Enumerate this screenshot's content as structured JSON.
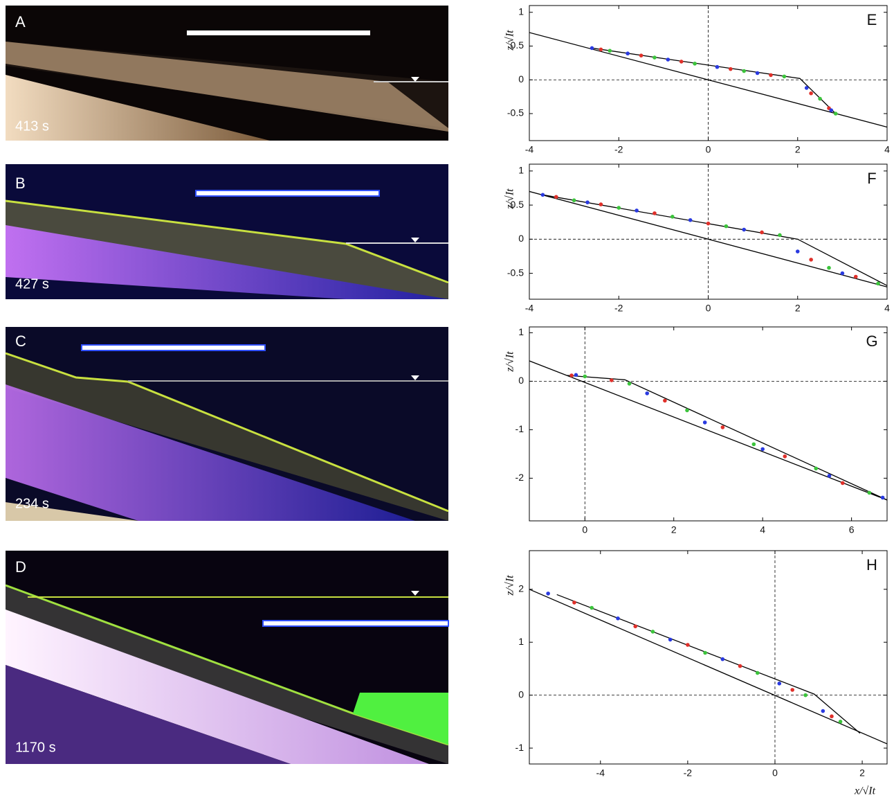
{
  "photos": [
    {
      "label": "A",
      "time": "413 s"
    },
    {
      "label": "B",
      "time": "427 s"
    },
    {
      "label": "C",
      "time": "234 s"
    },
    {
      "label": "D",
      "time": "1170 s"
    }
  ],
  "chart_data": [
    {
      "type": "scatter",
      "label": "E",
      "ylabel": "z/√It",
      "xlim": [
        -4,
        4
      ],
      "ylim": [
        -0.9,
        1.1
      ],
      "xticks": [
        -4,
        -2,
        0,
        2,
        4
      ],
      "yticks": [
        -0.5,
        0,
        0.5,
        1
      ],
      "lines": [
        {
          "color": "#000",
          "x": [
            -4,
            4
          ],
          "y": [
            0.7,
            -0.7
          ]
        },
        {
          "color": "#000",
          "x": [
            -2.6,
            2.05,
            2.85
          ],
          "y": [
            0.47,
            0.02,
            -0.5
          ]
        }
      ],
      "series": [
        {
          "color": "#e0302a",
          "x": [
            -2.4,
            -1.5,
            -0.6,
            0.5,
            1.4,
            2.3,
            2.7
          ],
          "values": [
            0.45,
            0.36,
            0.27,
            0.16,
            0.07,
            -0.2,
            -0.42
          ]
        },
        {
          "color": "#3cc43c",
          "x": [
            -2.2,
            -1.2,
            -0.3,
            0.8,
            1.7,
            2.5,
            2.85
          ],
          "values": [
            0.43,
            0.33,
            0.24,
            0.13,
            0.05,
            -0.28,
            -0.5
          ]
        },
        {
          "color": "#2a3ae0",
          "x": [
            -2.6,
            -1.8,
            -0.9,
            0.2,
            1.1,
            2.2,
            2.75
          ],
          "values": [
            0.47,
            0.39,
            0.3,
            0.19,
            0.1,
            -0.12,
            -0.45
          ]
        }
      ]
    },
    {
      "type": "scatter",
      "label": "F",
      "ylabel": "z/√It",
      "xlim": [
        -4,
        4
      ],
      "ylim": [
        -0.88,
        1.1
      ],
      "xticks": [
        -4,
        -2,
        0,
        2,
        4
      ],
      "yticks": [
        -0.5,
        0,
        0.5,
        1
      ],
      "lines": [
        {
          "color": "#000",
          "x": [
            -4,
            4
          ],
          "y": [
            0.7,
            -0.7
          ]
        },
        {
          "color": "#000",
          "x": [
            -3.7,
            2.0,
            4
          ],
          "y": [
            0.65,
            0.0,
            -0.68
          ]
        }
      ],
      "series": [
        {
          "color": "#e0302a",
          "x": [
            -3.4,
            -2.4,
            -1.2,
            0,
            1.2,
            2.3,
            3.3
          ],
          "values": [
            0.62,
            0.51,
            0.38,
            0.23,
            0.1,
            -0.3,
            -0.55
          ]
        },
        {
          "color": "#3cc43c",
          "x": [
            -3.0,
            -2.0,
            -0.8,
            0.4,
            1.6,
            2.7,
            3.8
          ],
          "values": [
            0.57,
            0.46,
            0.33,
            0.19,
            0.06,
            -0.42,
            -0.65
          ]
        },
        {
          "color": "#2a3ae0",
          "x": [
            -3.7,
            -2.7,
            -1.6,
            -0.4,
            0.8,
            2.0,
            3.0
          ],
          "values": [
            0.65,
            0.54,
            0.42,
            0.28,
            0.14,
            -0.18,
            -0.5
          ]
        }
      ]
    },
    {
      "type": "scatter",
      "label": "G",
      "ylabel": "z/√It",
      "xlim": [
        -1.25,
        6.8
      ],
      "ylim": [
        -2.88,
        1.12
      ],
      "xticks": [
        0,
        2,
        4,
        6
      ],
      "yticks": [
        -2,
        -1,
        0,
        1
      ],
      "lines": [
        {
          "color": "#000",
          "x": [
            -1.25,
            6.8
          ],
          "y": [
            0.42,
            -2.45
          ]
        },
        {
          "color": "#000",
          "x": [
            -0.4,
            0.9,
            6.8
          ],
          "y": [
            0.12,
            0.03,
            -2.45
          ]
        }
      ],
      "series": [
        {
          "color": "#e0302a",
          "x": [
            -0.3,
            0.6,
            1.8,
            3.1,
            4.5,
            5.8
          ],
          "values": [
            0.12,
            0.02,
            -0.4,
            -0.95,
            -1.55,
            -2.1
          ]
        },
        {
          "color": "#3cc43c",
          "x": [
            0,
            1.0,
            2.3,
            3.8,
            5.2,
            6.4
          ],
          "values": [
            0.1,
            -0.05,
            -0.6,
            -1.3,
            -1.8,
            -2.3
          ]
        },
        {
          "color": "#2a3ae0",
          "x": [
            -0.2,
            1.4,
            2.7,
            4.0,
            5.5,
            6.7
          ],
          "values": [
            0.13,
            -0.25,
            -0.85,
            -1.4,
            -1.95,
            -2.4
          ]
        }
      ]
    },
    {
      "type": "scatter",
      "label": "H",
      "ylabel": "z/√It",
      "xlabel": "x/√It",
      "xlim": [
        -5.63,
        2.57
      ],
      "ylim": [
        -1.3,
        2.73
      ],
      "xticks": [
        -4,
        -2,
        0,
        2
      ],
      "yticks": [
        -1,
        0,
        1,
        2
      ],
      "lines": [
        {
          "color": "#000",
          "x": [
            -5.63,
            2.57
          ],
          "y": [
            2.0,
            -0.92
          ]
        },
        {
          "color": "#000",
          "x": [
            -5.0,
            0.9,
            1.95
          ],
          "y": [
            1.9,
            0.02,
            -0.72
          ]
        }
      ],
      "series": [
        {
          "color": "#e0302a",
          "x": [
            -4.6,
            -3.2,
            -2,
            -0.8,
            0.4,
            1.3
          ],
          "values": [
            1.75,
            1.3,
            0.95,
            0.55,
            0.1,
            -0.4
          ]
        },
        {
          "color": "#3cc43c",
          "x": [
            -4.2,
            -2.8,
            -1.6,
            -0.4,
            0.7,
            1.5
          ],
          "values": [
            1.65,
            1.2,
            0.8,
            0.42,
            0.0,
            -0.5
          ]
        },
        {
          "color": "#2a3ae0",
          "x": [
            -5.2,
            -3.6,
            -2.4,
            -1.2,
            0.1,
            1.1
          ],
          "values": [
            1.92,
            1.45,
            1.05,
            0.68,
            0.22,
            -0.3
          ]
        }
      ]
    }
  ]
}
